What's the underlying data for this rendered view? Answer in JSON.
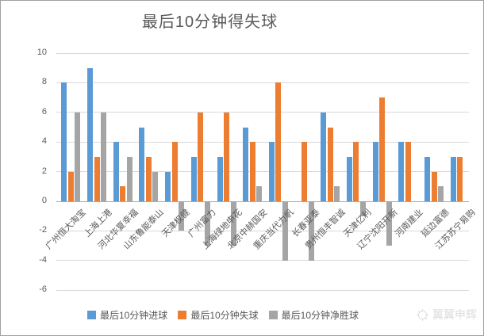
{
  "chart_data": {
    "type": "bar",
    "title": "最后10分钟得失球",
    "categories": [
      "广州恒大淘宝",
      "上海上港",
      "河北华夏幸福",
      "山东鲁能泰山",
      "天津权健",
      "广州富力",
      "上海绿地申花",
      "北京中赫国安",
      "重庆当代力帆",
      "长春亚泰",
      "贵州恒丰智诚",
      "天津亿利",
      "辽宁沈阳开新",
      "河南建业",
      "延边富德",
      "江苏苏宁易购"
    ],
    "series": [
      {
        "name": "最后10分钟进球",
        "color": "#5B9BD5",
        "values": [
          8,
          9,
          4,
          5,
          2,
          3,
          3,
          5,
          4,
          0,
          6,
          3,
          4,
          4,
          3,
          3
        ]
      },
      {
        "name": "最后10分钟失球",
        "color": "#ED7D31",
        "values": [
          2,
          3,
          1,
          3,
          4,
          6,
          6,
          4,
          8,
          4,
          5,
          4,
          7,
          4,
          2,
          3
        ]
      },
      {
        "name": "最后10分钟净胜球",
        "color": "#A5A5A5",
        "values": [
          6,
          6,
          3,
          2,
          -2,
          -3,
          -3,
          1,
          -4,
          -4,
          1,
          -1,
          -3,
          0,
          1,
          0
        ]
      }
    ],
    "ylim": [
      -6,
      10
    ],
    "ytick_step": 2,
    "grid": true,
    "legend_position": "bottom",
    "xlabel": "",
    "ylabel": ""
  },
  "watermark": {
    "text": "翼翼申辉",
    "icon": "sun-logo"
  }
}
